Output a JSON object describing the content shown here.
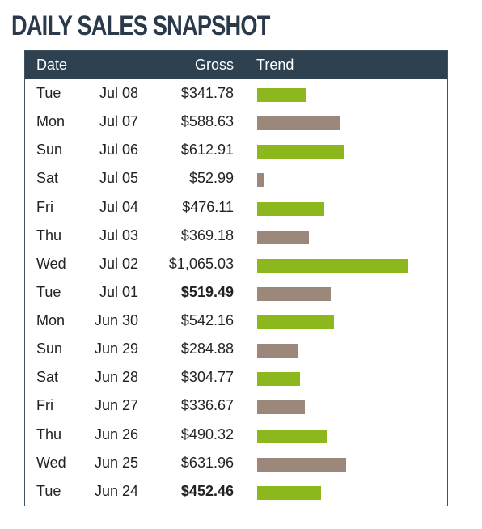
{
  "page": {
    "title": "DAILY SALES SNAPSHOT"
  },
  "table": {
    "headers": {
      "date": "Date",
      "gross": "Gross",
      "trend": "Trend"
    }
  },
  "colors": {
    "header_bg": "#2e4151",
    "up": "#8cb81d",
    "down": "#9c887a"
  },
  "chart_data": {
    "type": "table",
    "title": "DAILY SALES SNAPSHOT",
    "columns": [
      "Date",
      "Gross",
      "Trend"
    ],
    "bar_scale_max": 1065.03,
    "rows": [
      {
        "day": "Tue",
        "date": "Jul 08",
        "gross": "$341.78",
        "value": 341.78,
        "trend": "up",
        "bold": false
      },
      {
        "day": "Mon",
        "date": "Jul 07",
        "gross": "$588.63",
        "value": 588.63,
        "trend": "down",
        "bold": false
      },
      {
        "day": "Sun",
        "date": "Jul 06",
        "gross": "$612.91",
        "value": 612.91,
        "trend": "up",
        "bold": false
      },
      {
        "day": "Sat",
        "date": "Jul 05",
        "gross": "$52.99",
        "value": 52.99,
        "trend": "down",
        "bold": false
      },
      {
        "day": "Fri",
        "date": "Jul 04",
        "gross": "$476.11",
        "value": 476.11,
        "trend": "up",
        "bold": false
      },
      {
        "day": "Thu",
        "date": "Jul 03",
        "gross": "$369.18",
        "value": 369.18,
        "trend": "down",
        "bold": false
      },
      {
        "day": "Wed",
        "date": "Jul 02",
        "gross": "$1,065.03",
        "value": 1065.03,
        "trend": "up",
        "bold": false
      },
      {
        "day": "Tue",
        "date": "Jul 01",
        "gross": "$519.49",
        "value": 519.49,
        "trend": "down",
        "bold": true
      },
      {
        "day": "Mon",
        "date": "Jun 30",
        "gross": "$542.16",
        "value": 542.16,
        "trend": "up",
        "bold": false
      },
      {
        "day": "Sun",
        "date": "Jun 29",
        "gross": "$284.88",
        "value": 284.88,
        "trend": "down",
        "bold": false
      },
      {
        "day": "Sat",
        "date": "Jun 28",
        "gross": "$304.77",
        "value": 304.77,
        "trend": "up",
        "bold": false
      },
      {
        "day": "Fri",
        "date": "Jun 27",
        "gross": "$336.67",
        "value": 336.67,
        "trend": "down",
        "bold": false
      },
      {
        "day": "Thu",
        "date": "Jun 26",
        "gross": "$490.32",
        "value": 490.32,
        "trend": "up",
        "bold": false
      },
      {
        "day": "Wed",
        "date": "Jun 25",
        "gross": "$631.96",
        "value": 631.96,
        "trend": "down",
        "bold": false
      },
      {
        "day": "Tue",
        "date": "Jun 24",
        "gross": "$452.46",
        "value": 452.46,
        "trend": "up",
        "bold": true
      }
    ]
  }
}
